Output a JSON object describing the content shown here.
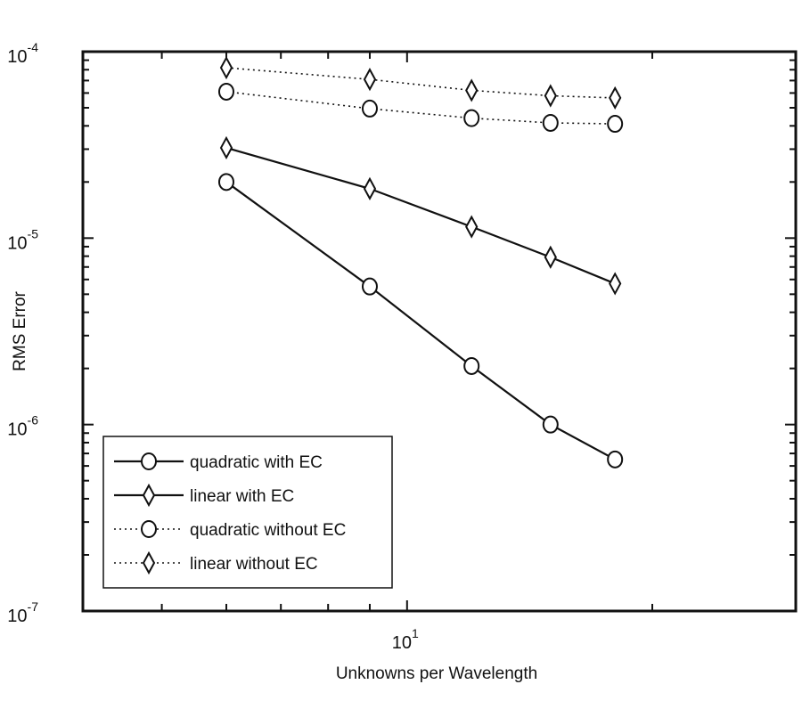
{
  "chart_data": {
    "type": "line",
    "title": "",
    "xlabel": "Unknowns per Wavelength",
    "ylabel": "RMS Error",
    "xscale": "log",
    "yscale": "log",
    "xlim": [
      4,
      30
    ],
    "ylim": [
      1e-07,
      0.0001
    ],
    "x_ticks": [
      {
        "value": 10,
        "base": "10",
        "exp": "1"
      }
    ],
    "y_ticks": [
      {
        "value": 0.0001,
        "base": "10",
        "exp": "-4"
      },
      {
        "value": 1e-05,
        "base": "10",
        "exp": "-5"
      },
      {
        "value": 1e-06,
        "base": "10",
        "exp": "-6"
      },
      {
        "value": 1e-07,
        "base": "10",
        "exp": "-7"
      }
    ],
    "grid": false,
    "legend_position": "bottom-left",
    "x": [
      6,
      9,
      12,
      15,
      18
    ],
    "series": [
      {
        "name": "quadratic with EC",
        "marker": "circle",
        "line": "solid",
        "color": "#111111",
        "values": [
          2e-05,
          5.5e-06,
          2.06e-06,
          1e-06,
          6.5e-07
        ]
      },
      {
        "name": "linear with EC",
        "marker": "diamond",
        "line": "solid",
        "color": "#111111",
        "values": [
          3.05e-05,
          1.84e-05,
          1.15e-05,
          7.9e-06,
          5.7e-06
        ]
      },
      {
        "name": "quadratic without EC",
        "marker": "circle",
        "line": "dotted",
        "color": "#111111",
        "values": [
          6.1e-05,
          4.95e-05,
          4.4e-05,
          4.15e-05,
          4.1e-05
        ]
      },
      {
        "name": "linear without EC",
        "marker": "diamond",
        "line": "dotted",
        "color": "#111111",
        "values": [
          8.2e-05,
          7.1e-05,
          6.2e-05,
          5.8e-05,
          5.65e-05
        ]
      }
    ]
  }
}
